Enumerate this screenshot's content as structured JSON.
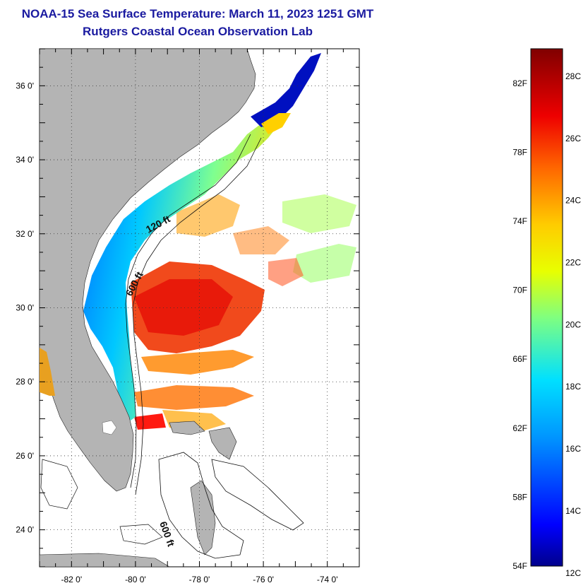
{
  "title": {
    "line1": "NOAA-15 Sea Surface Temperature:  March 11, 2023 1251 GMT",
    "line2": "Rutgers Coastal Ocean Observation Lab"
  },
  "map": {
    "lon_range": [
      -83,
      -73
    ],
    "lat_range": [
      23,
      37
    ],
    "lat_ticks": [
      {
        "value": 24,
        "label": "24 0'"
      },
      {
        "value": 26,
        "label": "26 0'"
      },
      {
        "value": 28,
        "label": "28 0'"
      },
      {
        "value": 30,
        "label": "30 0'"
      },
      {
        "value": 32,
        "label": "32 0'"
      },
      {
        "value": 34,
        "label": "34 0'"
      },
      {
        "value": 36,
        "label": "36 0'"
      }
    ],
    "lon_ticks": [
      {
        "value": -82,
        "label": "-82 0'"
      },
      {
        "value": -80,
        "label": "-80 0'"
      },
      {
        "value": -78,
        "label": "-78 0'"
      },
      {
        "value": -76,
        "label": "-76 0'"
      },
      {
        "value": -74,
        "label": "-74 0'"
      }
    ],
    "contour_labels": [
      "120 ft",
      "600 ft",
      "600 ft"
    ],
    "land_color": "#b4b4b4",
    "grid": "dotted"
  },
  "colorbar": {
    "min_f": 54,
    "max_f": 84,
    "fahrenheit_labels": [
      "82F",
      "78F",
      "74F",
      "70F",
      "66F",
      "62F",
      "58F",
      "54F"
    ],
    "celsius_labels": [
      "28C",
      "26C",
      "24C",
      "22C",
      "20C",
      "18C",
      "16C",
      "14C",
      "12C"
    ],
    "colors": [
      "#00008c",
      "#0000ff",
      "#0096ff",
      "#00e0ff",
      "#7fff80",
      "#e8ff00",
      "#ffcc00",
      "#ff6600",
      "#ee0000",
      "#800000"
    ]
  }
}
